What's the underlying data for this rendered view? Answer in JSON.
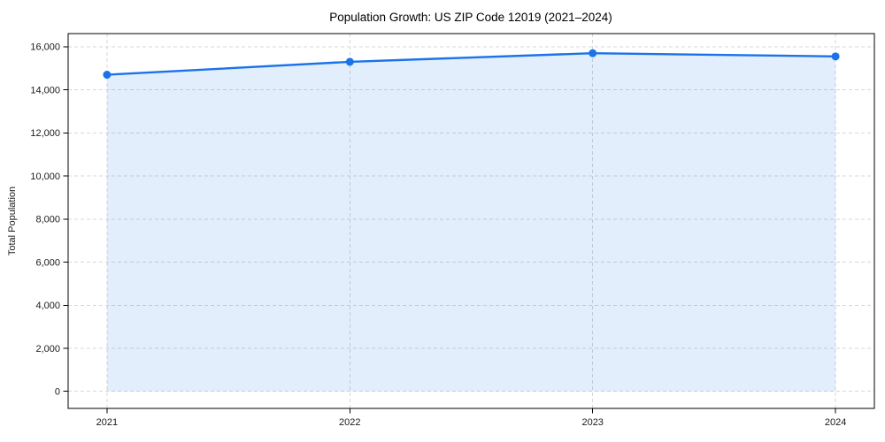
{
  "page": {
    "background": "#ffffff"
  },
  "chart_data": {
    "type": "line",
    "title": "Population Growth: US ZIP Code 12019 (2021–2024)",
    "xlabel": "",
    "ylabel": "Total Population",
    "x": [
      2021,
      2022,
      2023,
      2024
    ],
    "series": [
      {
        "name": "Total Population",
        "values": [
          14700,
          15300,
          15700,
          15550
        ]
      }
    ],
    "xticks": [
      2021,
      2022,
      2023,
      2024
    ],
    "yticks": [
      0,
      2000,
      4000,
      6000,
      8000,
      10000,
      12000,
      14000,
      16000
    ],
    "xlim": [
      2020.84,
      2024.16
    ],
    "ylim": [
      -790,
      16610
    ],
    "grid": {
      "visible": true,
      "style": "dashed",
      "color": "#d7d7d7"
    },
    "legend": {
      "visible": false,
      "position": "none"
    },
    "area_fill": true,
    "marker": "circle",
    "colors": {
      "line": "#1a73e8",
      "marker": "#1a73e8",
      "fill": "rgba(26,115,232,0.12)",
      "axis": "#000000",
      "tick_text": "#1a1a1a"
    }
  }
}
